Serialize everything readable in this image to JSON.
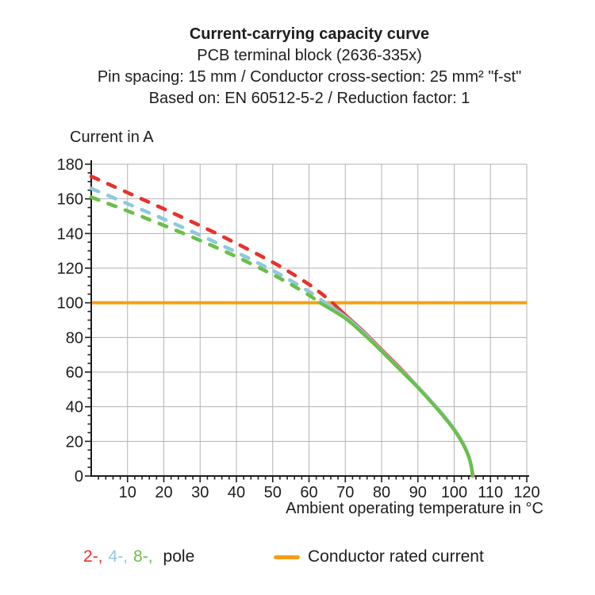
{
  "chart_data": {
    "type": "line",
    "title": "Current-carrying capacity curve",
    "subtitle_lines": [
      "PCB terminal block (2636-335x)",
      "Pin spacing: 15 mm / Conductor cross-section: 25 mm² \"f-st\"",
      "Based on: EN 60512-5-2 / Reduction factor: 1"
    ],
    "ylabel": "Current in A",
    "xlabel": "Ambient operating temperature in °C",
    "xlim": [
      0,
      120
    ],
    "ylim": [
      0,
      180
    ],
    "x_ticks": [
      10,
      20,
      30,
      40,
      50,
      60,
      70,
      80,
      90,
      100,
      110,
      120
    ],
    "y_ticks": [
      0,
      20,
      40,
      60,
      80,
      100,
      120,
      140,
      160,
      180
    ],
    "x_minor_step": 2,
    "y_minor_step": 5,
    "grid": true,
    "grid_color": "#b3b3b3",
    "axis_color": "#1d1d1b",
    "rated_current": {
      "value_A": 100,
      "color": "#f59e18"
    },
    "series": [
      {
        "name": "2-pole",
        "color": "#e5332c",
        "dashed_points": [
          [
            0,
            173
          ],
          [
            10,
            163.6
          ],
          [
            20,
            154.2
          ],
          [
            30,
            144.5
          ],
          [
            40,
            134.3
          ],
          [
            50,
            123.4
          ],
          [
            55,
            117.3
          ],
          [
            60,
            110.6
          ],
          [
            63,
            106
          ],
          [
            66.5,
            100
          ]
        ],
        "solid_points": [
          [
            66.5,
            100
          ],
          [
            70,
            93
          ],
          [
            75,
            83.5
          ],
          [
            80,
            73
          ],
          [
            85,
            62.5
          ],
          [
            90,
            51.5
          ],
          [
            95,
            40
          ],
          [
            98,
            32.5
          ],
          [
            100,
            27
          ],
          [
            102,
            20.5
          ],
          [
            103,
            16.5
          ],
          [
            104,
            11.5
          ],
          [
            104.7,
            6
          ],
          [
            105.2,
            0
          ]
        ]
      },
      {
        "name": "4-pole",
        "color": "#8ec9dc",
        "dashed_points": [
          [
            0,
            166
          ],
          [
            10,
            157.2
          ],
          [
            20,
            148.3
          ],
          [
            30,
            139
          ],
          [
            40,
            129.2
          ],
          [
            50,
            118.6
          ],
          [
            55,
            112.8
          ],
          [
            60,
            106.5
          ],
          [
            64.5,
            100
          ]
        ],
        "solid_points": [
          [
            64.5,
            100
          ],
          [
            70,
            92
          ],
          [
            75,
            83
          ],
          [
            80,
            72.5
          ],
          [
            85,
            62
          ],
          [
            90,
            51.5
          ],
          [
            95,
            40
          ],
          [
            98,
            32.5
          ],
          [
            100,
            27
          ],
          [
            102,
            20.5
          ],
          [
            103,
            16.5
          ],
          [
            104,
            11.5
          ],
          [
            104.7,
            6
          ],
          [
            105.1,
            0
          ]
        ]
      },
      {
        "name": "8-pole",
        "color": "#6abf4b",
        "dashed_points": [
          [
            0,
            161
          ],
          [
            10,
            153
          ],
          [
            20,
            144.7
          ],
          [
            30,
            136
          ],
          [
            40,
            126.6
          ],
          [
            50,
            116.3
          ],
          [
            55,
            110.6
          ],
          [
            60,
            104.4
          ],
          [
            63,
            100
          ]
        ],
        "solid_points": [
          [
            63,
            100
          ],
          [
            70,
            91
          ],
          [
            75,
            82
          ],
          [
            80,
            72
          ],
          [
            85,
            61.5
          ],
          [
            90,
            51
          ],
          [
            95,
            39.5
          ],
          [
            98,
            32
          ],
          [
            100,
            26.5
          ],
          [
            102,
            20
          ],
          [
            103,
            16
          ],
          [
            104,
            11
          ],
          [
            104.7,
            5.5
          ],
          [
            105,
            0
          ]
        ]
      }
    ]
  },
  "legend": {
    "pole_parts": [
      {
        "label": "2-,",
        "color": "#e5332c"
      },
      {
        "label": "4-,",
        "color": "#8ec9dc"
      },
      {
        "label": "8-,",
        "color": "#6abf4b"
      },
      {
        "label": "pole",
        "color": "#1d1d1b"
      }
    ],
    "rated_label": "Conductor rated current"
  }
}
